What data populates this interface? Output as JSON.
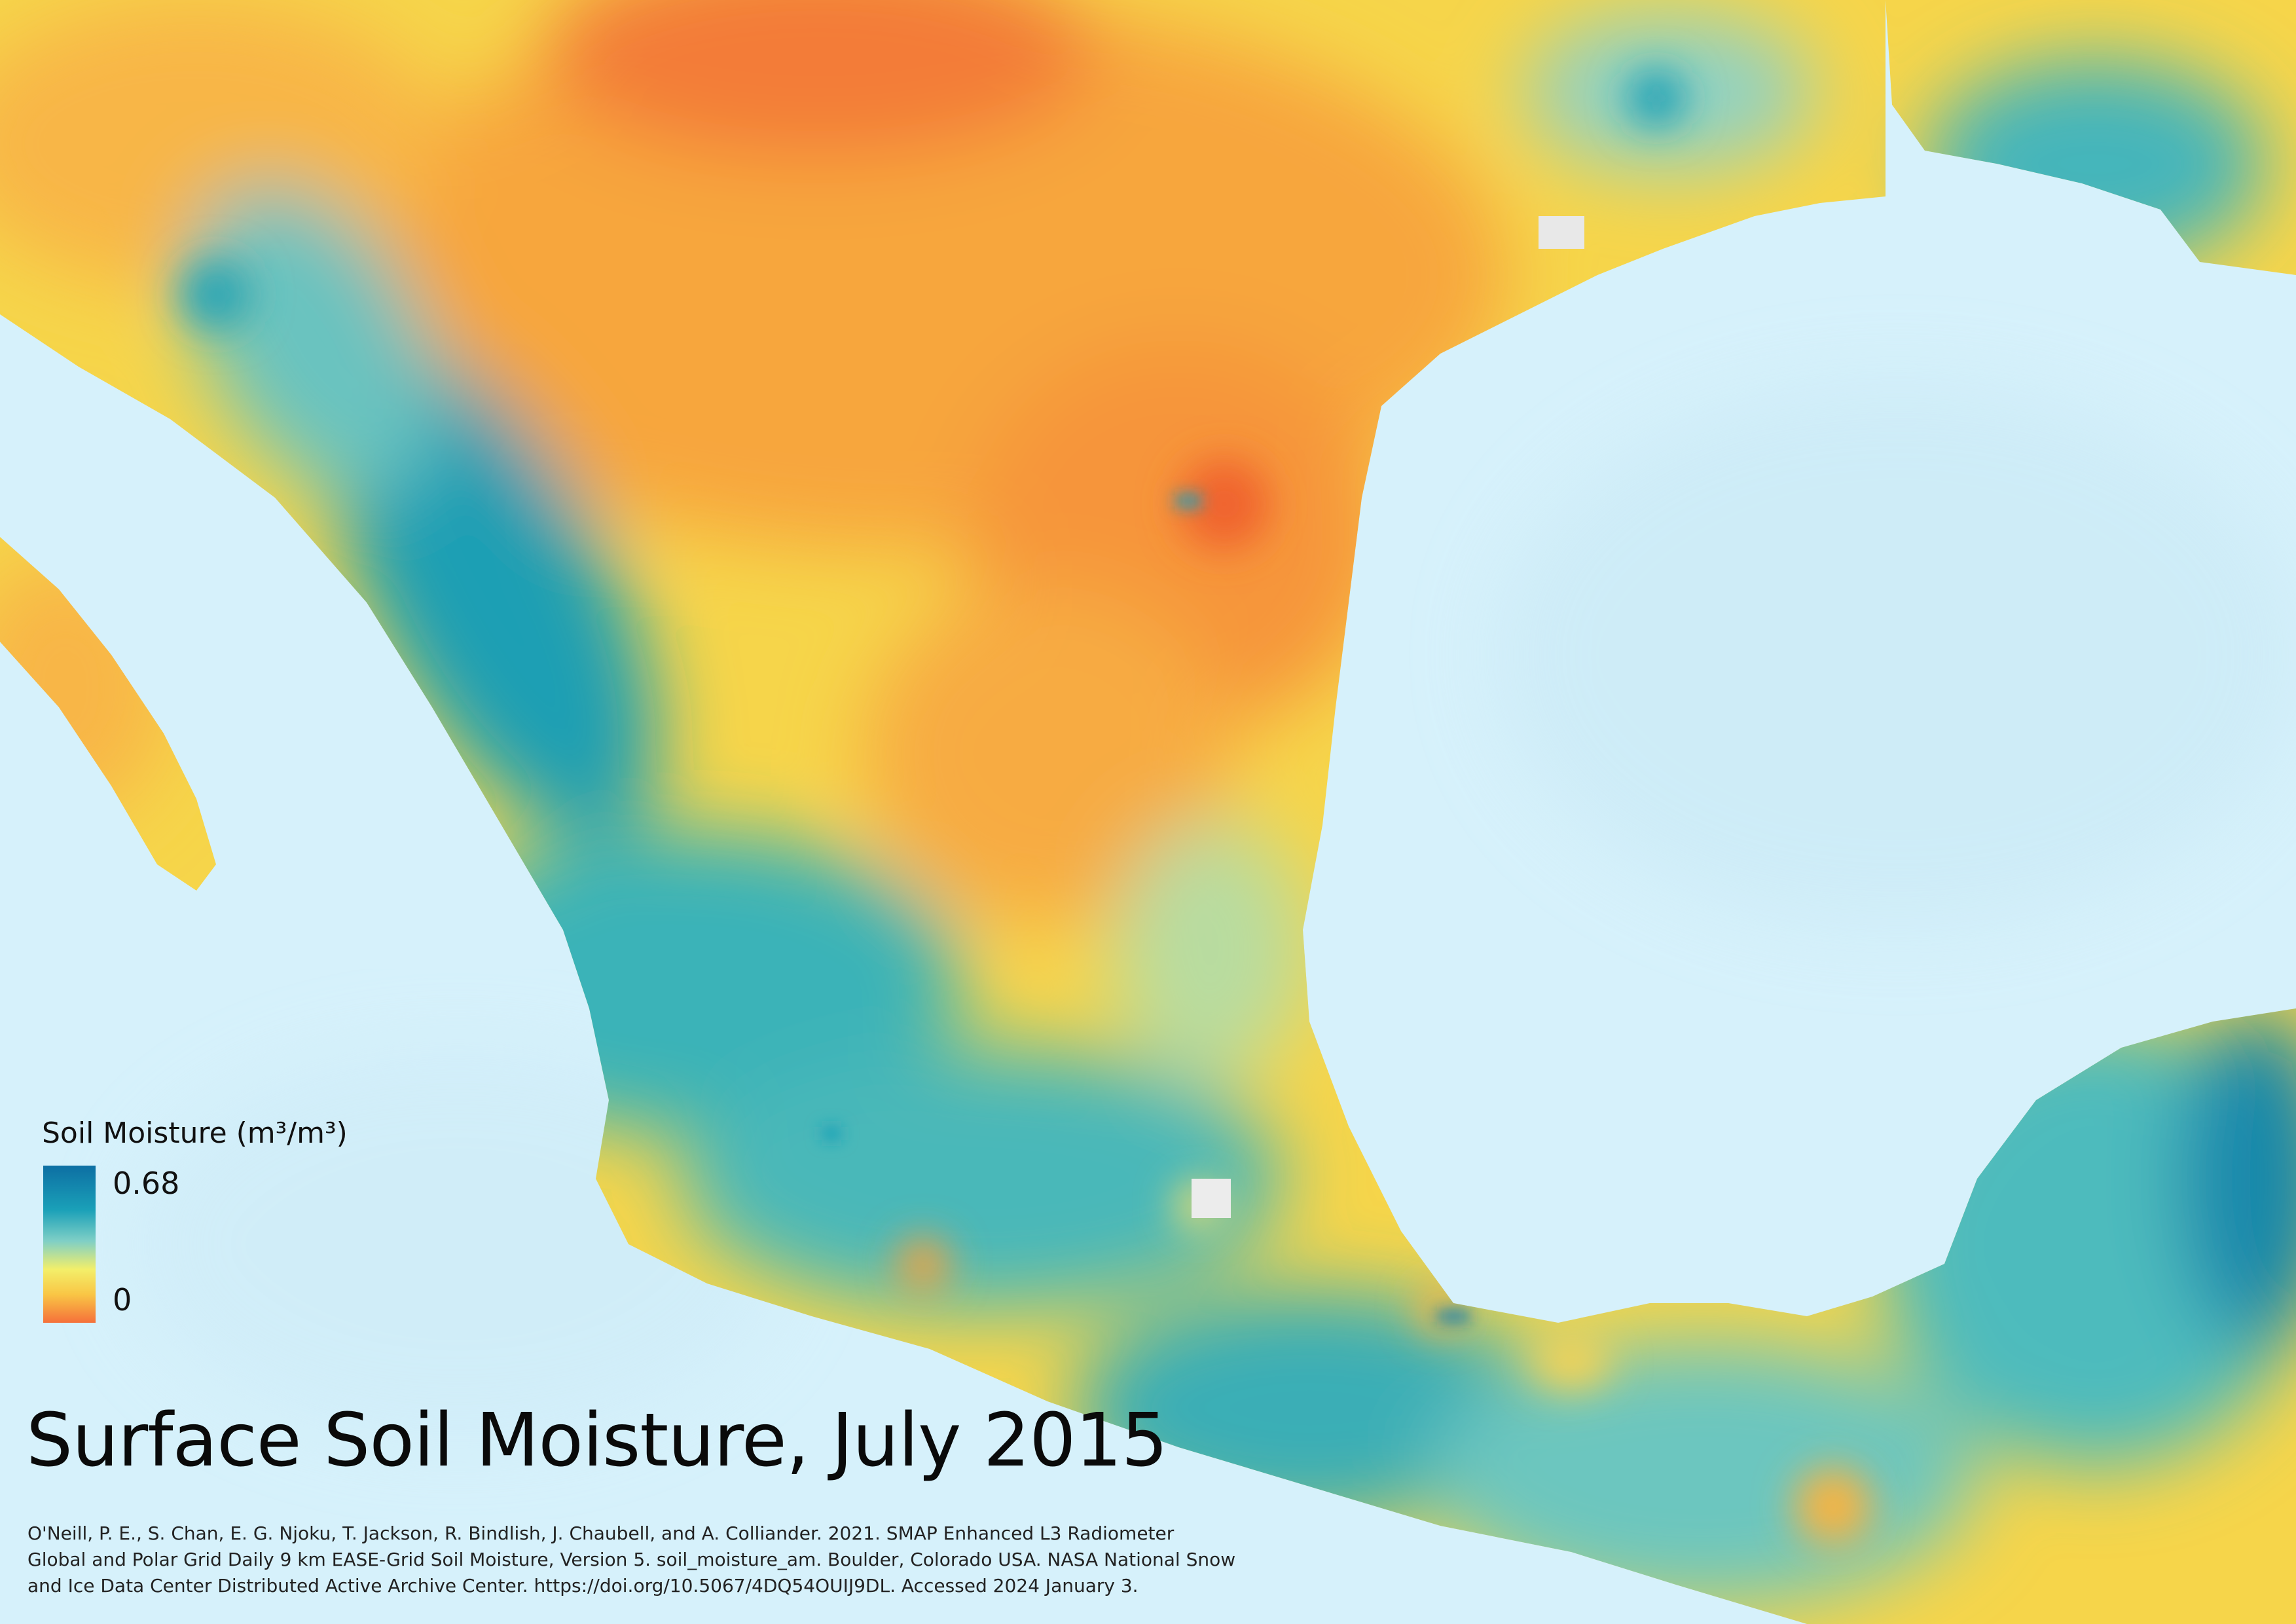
{
  "map": {
    "title": "Surface Soil Moisture, July 2015",
    "legend": {
      "title": "Soil Moisture (m³/m³)",
      "max_label": "0.68",
      "min_label": "0",
      "colors": [
        "#0d6fa3",
        "#1aa0b8",
        "#7fcfc6",
        "#f3ef6a",
        "#f9c645",
        "#f5703a"
      ]
    },
    "citation": [
      "O'Neill, P. E., S. Chan, E. G. Njoku, T. Jackson, R. Bindlish, J. Chaubell, and A. Colliander. 2021. SMAP Enhanced L3 Radiometer",
      "Global and Polar Grid Daily 9 km EASE-Grid Soil Moisture, Version 5. soil_moisture_am. Boulder, Colorado USA. NASA National Snow",
      "and Ice Data Center Distributed Active Archive Center. https://doi.org/10.5067/4DQ54OUIJ9DL. Accessed 2024 January 3."
    ],
    "water_color": "#d6f1fb"
  }
}
